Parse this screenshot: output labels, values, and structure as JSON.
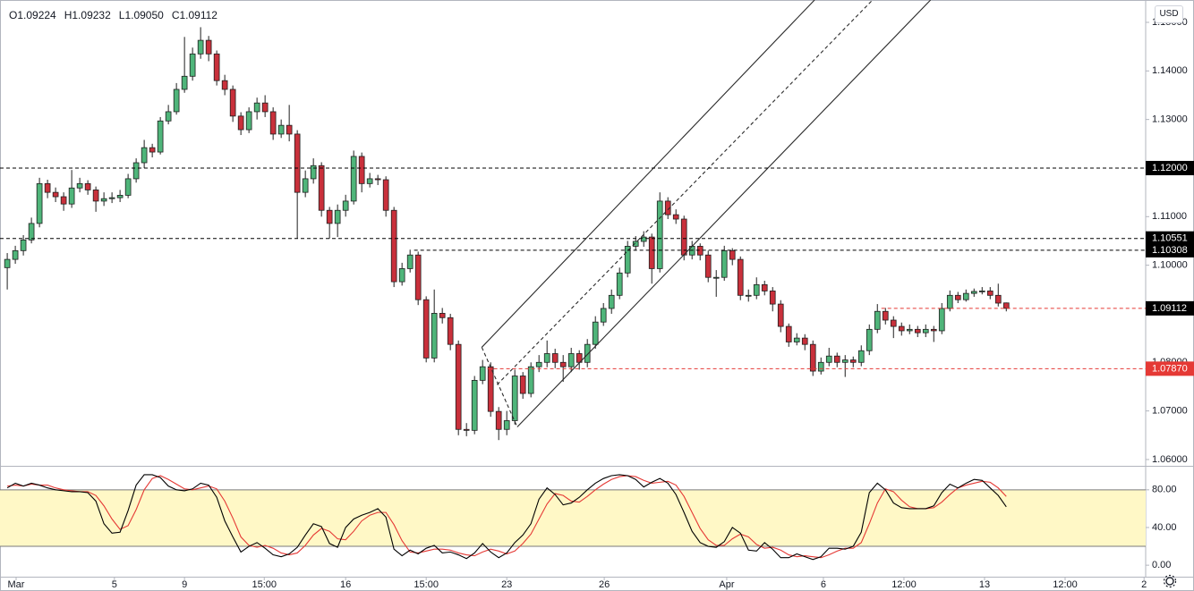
{
  "chart_data": [
    {
      "type": "candlestick",
      "header": [
        "O1.09224",
        "H1.09232",
        "L1.09050",
        "C1.09112"
      ],
      "currency": "USD",
      "open": [
        1.0995,
        1.1012,
        1.103,
        1.1052,
        1.1086,
        1.1168,
        1.115,
        1.1141,
        1.1126,
        1.1159,
        1.1168,
        1.1155,
        1.1132,
        1.1137,
        1.1139,
        1.1144,
        1.1178,
        1.1211,
        1.1242,
        1.1233,
        1.1297,
        1.1316,
        1.1362,
        1.1389,
        1.1435,
        1.1463,
        1.1435,
        1.138,
        1.1362,
        1.1307,
        1.1279,
        1.1316,
        1.1334,
        1.1316,
        1.127,
        1.1288,
        1.127,
        1.115,
        1.1178,
        1.1205,
        1.1113,
        1.1086,
        1.1113,
        1.1132,
        1.1224,
        1.1168,
        1.1178,
        1.1176,
        1.1113,
        1.0966,
        1.0993,
        1.1021,
        1.0929,
        1.0809,
        1.0901,
        1.0892,
        1.0837,
        1.0662,
        1.066,
        1.0763,
        1.0791,
        1.0699,
        1.0662,
        1.068,
        1.0772,
        1.0736,
        1.0791,
        1.08,
        1.0818,
        1.08,
        1.0791,
        1.0818,
        1.08,
        1.0837,
        1.0883,
        1.0911,
        1.0938,
        1.0984,
        1.1039,
        1.1049,
        1.1058,
        1.0993,
        1.1132,
        1.1104,
        1.1095,
        1.1021,
        1.1039,
        1.1021,
        1.0975,
        1.0975,
        1.103,
        1.1012,
        1.0938,
        1.0938,
        1.096,
        1.0947,
        1.092,
        1.0874,
        1.0842,
        1.085,
        1.0837,
        1.0782,
        1.08,
        1.0813,
        1.08,
        1.0805,
        1.08,
        1.0824,
        1.0868,
        1.0905,
        1.0887,
        1.0874,
        1.0865,
        1.0868,
        1.0861,
        1.0868,
        1.0865,
        1.0911,
        1.0938,
        1.0929,
        1.0942,
        1.0946,
        1.0947,
        1.0938,
        1.09224
      ],
      "high": [
        1.1025,
        1.104,
        1.1062,
        1.1098,
        1.118,
        1.1176,
        1.116,
        1.115,
        1.1196,
        1.118,
        1.1175,
        1.1162,
        1.115,
        1.115,
        1.1155,
        1.1188,
        1.122,
        1.1258,
        1.125,
        1.1305,
        1.133,
        1.1375,
        1.147,
        1.1448,
        1.149,
        1.1472,
        1.1442,
        1.1392,
        1.137,
        1.1315,
        1.1325,
        1.1345,
        1.135,
        1.1325,
        1.13,
        1.133,
        1.1278,
        1.1195,
        1.122,
        1.1212,
        1.112,
        1.1125,
        1.1145,
        1.1236,
        1.1232,
        1.119,
        1.1186,
        1.1183,
        1.112,
        1.1005,
        1.1032,
        1.1028,
        1.0936,
        1.095,
        1.0912,
        1.09,
        1.0845,
        1.0675,
        1.0772,
        1.0805,
        1.08,
        1.0708,
        1.07,
        1.0785,
        1.078,
        1.08,
        1.0815,
        1.0845,
        1.0828,
        1.0815,
        1.083,
        1.0825,
        1.0848,
        1.0895,
        1.0922,
        1.095,
        1.0995,
        1.105,
        1.106,
        1.107,
        1.1065,
        1.115,
        1.114,
        1.1115,
        1.1102,
        1.105,
        1.1045,
        1.103,
        1.099,
        1.104,
        1.1035,
        1.1018,
        1.095,
        1.0975,
        1.0968,
        1.0955,
        1.0928,
        1.088,
        1.086,
        1.0858,
        1.0845,
        1.081,
        1.083,
        1.082,
        1.0815,
        1.0812,
        1.0835,
        1.0878,
        1.092,
        1.0912,
        1.0895,
        1.0882,
        1.0878,
        1.0875,
        1.0878,
        1.0875,
        1.0922,
        1.0948,
        1.0945,
        1.095,
        1.0952,
        1.0955,
        1.0955,
        1.0962,
        1.09232
      ],
      "low": [
        1.095,
        1.1003,
        1.102,
        1.1045,
        1.1078,
        1.1138,
        1.113,
        1.1112,
        1.1118,
        1.115,
        1.1145,
        1.111,
        1.1122,
        1.1128,
        1.113,
        1.1138,
        1.117,
        1.12,
        1.1222,
        1.1228,
        1.129,
        1.131,
        1.1355,
        1.138,
        1.1425,
        1.142,
        1.137,
        1.135,
        1.1295,
        1.1268,
        1.1272,
        1.13,
        1.1305,
        1.1258,
        1.1262,
        1.1255,
        1.1055,
        1.114,
        1.1168,
        1.11,
        1.1055,
        1.1058,
        1.11,
        1.1125,
        1.115,
        1.116,
        1.1165,
        1.11,
        1.0955,
        1.0958,
        1.0985,
        1.0918,
        1.08,
        1.08,
        1.088,
        1.0825,
        1.065,
        1.0648,
        1.0652,
        1.0755,
        1.0688,
        1.064,
        1.065,
        1.0672,
        1.0725,
        1.0728,
        1.078,
        1.079,
        1.0788,
        1.076,
        1.078,
        1.0785,
        1.079,
        1.0828,
        1.0875,
        1.09,
        1.093,
        1.0975,
        1.103,
        1.1038,
        1.0962,
        1.0985,
        1.1095,
        1.1085,
        1.101,
        1.1012,
        1.101,
        1.0965,
        1.0935,
        1.0968,
        1.1,
        1.0928,
        1.0925,
        1.093,
        1.0938,
        1.0905,
        1.0862,
        1.0832,
        1.0835,
        1.0825,
        1.0772,
        1.0775,
        1.0792,
        1.079,
        1.077,
        1.079,
        1.0792,
        1.0815,
        1.086,
        1.0878,
        1.085,
        1.0855,
        1.0858,
        1.0852,
        1.0852,
        1.0842,
        1.0858,
        1.0905,
        1.0922,
        1.0925,
        1.0935,
        1.094,
        1.093,
        1.0915,
        1.0905
      ],
      "close": [
        1.1012,
        1.103,
        1.1052,
        1.1086,
        1.1168,
        1.115,
        1.1141,
        1.1126,
        1.1159,
        1.1168,
        1.1155,
        1.1132,
        1.1137,
        1.1139,
        1.1144,
        1.1178,
        1.1211,
        1.1242,
        1.1233,
        1.1297,
        1.1316,
        1.1362,
        1.1389,
        1.1435,
        1.1463,
        1.1435,
        1.138,
        1.1362,
        1.1307,
        1.1279,
        1.1316,
        1.1334,
        1.1316,
        1.127,
        1.1288,
        1.127,
        1.115,
        1.1178,
        1.1205,
        1.1113,
        1.1086,
        1.1113,
        1.1132,
        1.1224,
        1.1168,
        1.1178,
        1.1176,
        1.1113,
        1.0966,
        1.0993,
        1.1021,
        1.0929,
        1.0809,
        1.0901,
        1.0892,
        1.0837,
        1.0662,
        1.066,
        1.0763,
        1.0791,
        1.0699,
        1.0662,
        1.068,
        1.0772,
        1.0736,
        1.0791,
        1.08,
        1.0818,
        1.08,
        1.0791,
        1.0818,
        1.08,
        1.0837,
        1.0883,
        1.0911,
        1.0938,
        1.0984,
        1.1039,
        1.1049,
        1.1058,
        1.0993,
        1.1132,
        1.1104,
        1.1095,
        1.1021,
        1.1039,
        1.1021,
        1.0975,
        1.0975,
        1.103,
        1.1012,
        1.0938,
        1.0938,
        1.096,
        1.0947,
        1.092,
        1.0874,
        1.0842,
        1.085,
        1.0837,
        1.0782,
        1.08,
        1.0813,
        1.08,
        1.0805,
        1.08,
        1.0824,
        1.0868,
        1.0905,
        1.0887,
        1.0874,
        1.0865,
        1.0868,
        1.0861,
        1.0868,
        1.0865,
        1.0911,
        1.0938,
        1.0929,
        1.0942,
        1.0946,
        1.0947,
        1.0938,
        1.0922,
        1.09112
      ],
      "up_color": "#4fb57a",
      "down_color": "#c9303b",
      "wick_color": "#1e1e1e",
      "xlim": [
        -0.9,
        141.3
      ],
      "ylim": [
        1.0587,
        1.1546
      ],
      "yticks": [
        {
          "value": 1.06,
          "label": "1.06000"
        },
        {
          "value": 1.07,
          "label": "1.07000"
        },
        {
          "value": 1.08,
          "label": "1.08000"
        },
        {
          "value": 1.1,
          "label": "1.10000"
        },
        {
          "value": 1.11,
          "label": "1.11000"
        },
        {
          "value": 1.13,
          "label": "1.13000"
        },
        {
          "value": 1.14,
          "label": "1.14000"
        },
        {
          "value": 1.15,
          "label": "1.15000"
        }
      ],
      "levels": [
        {
          "value": 1.12,
          "label": "1.12000",
          "color": "#000000",
          "label_color": "#000000"
        },
        {
          "value": 1.10551,
          "label": "1.10551",
          "color": "#000000",
          "label_color": "#000000"
        },
        {
          "value": 1.10308,
          "label": "1.10308",
          "color": "#000000",
          "label_color": "#000000",
          "from": 50.5
        },
        {
          "value": 1.0787,
          "label": "1.07870",
          "color": "#e53935",
          "label_color": "#e53935",
          "from": 59.6
        },
        {
          "value": 1.09112,
          "label": "1.09112",
          "color": "#e53935",
          "label_color": "#000000",
          "from": 108.5
        }
      ],
      "channel": [
        {
          "x": [
            58.9,
            100.2
          ],
          "y": [
            1.0831,
            1.1546
          ],
          "dashed": false
        },
        {
          "x": [
            63.3,
            114.6
          ],
          "y": [
            1.0667,
            1.1546
          ],
          "dashed": false
        },
        {
          "x": [
            60.8,
            107.4
          ],
          "y": [
            1.0754,
            1.1546
          ],
          "dashed": true
        },
        {
          "x": [
            58.9,
            63.3
          ],
          "y": [
            1.0831,
            1.0667
          ],
          "dashed": true
        }
      ]
    },
    {
      "type": "line",
      "xlim": [
        -0.9,
        141.3
      ],
      "ylim": [
        -12.2,
        104.5
      ],
      "yticks": [
        {
          "value": 0,
          "label": "0.00"
        },
        {
          "value": 40,
          "label": "40.00"
        },
        {
          "value": 80,
          "label": "80.00"
        }
      ],
      "band": [
        20,
        80
      ],
      "band_color": "#fff8c6",
      "xticks": [
        {
          "value": 1.1,
          "label": "Mar"
        },
        {
          "value": 13.3,
          "label": "5"
        },
        {
          "value": 22.0,
          "label": "9"
        },
        {
          "value": 31.9,
          "label": "15:00"
        },
        {
          "value": 42.0,
          "label": "16"
        },
        {
          "value": 52.0,
          "label": "15:00"
        },
        {
          "value": 62.0,
          "label": "23"
        },
        {
          "value": 74.1,
          "label": "26"
        },
        {
          "value": 89.3,
          "label": "Apr"
        },
        {
          "value": 101.3,
          "label": "6"
        },
        {
          "value": 111.3,
          "label": "12:00"
        },
        {
          "value": 121.3,
          "label": "13"
        },
        {
          "value": 131.3,
          "label": "12:00"
        },
        {
          "value": 141.1,
          "label": "2"
        }
      ],
      "series": [
        {
          "color": "#000000",
          "values": [
            82,
            87,
            84,
            87,
            85,
            82,
            80,
            79,
            78,
            78,
            77,
            68,
            44,
            34,
            35,
            58,
            85,
            96,
            96,
            93,
            84,
            80,
            79,
            81,
            87,
            85,
            72,
            47,
            30,
            14,
            20,
            24,
            18,
            11,
            9,
            12,
            19,
            32,
            44,
            41,
            23,
            19,
            40,
            49,
            53,
            56,
            60,
            51,
            17,
            10,
            16,
            12,
            18,
            21,
            13,
            14,
            11,
            7,
            13,
            23,
            14,
            8,
            13,
            24,
            32,
            44,
            70,
            82,
            75,
            64,
            66,
            72,
            80,
            87,
            92,
            95,
            96,
            95,
            91,
            83,
            88,
            92,
            87,
            75,
            56,
            36,
            24,
            20,
            19,
            25,
            40,
            34,
            16,
            15,
            24,
            17,
            8,
            8,
            12,
            9,
            6,
            9,
            18,
            18,
            17,
            20,
            35,
            77,
            87,
            80,
            66,
            61,
            60,
            60,
            60,
            63,
            77,
            86,
            82,
            87,
            91,
            90,
            82,
            74,
            62
          ]
        },
        {
          "color": "#e53935",
          "values": [
            84,
            85,
            84,
            86,
            85,
            85,
            82,
            80,
            79,
            78,
            78,
            74,
            63,
            49,
            38,
            42,
            59,
            80,
            92,
            95,
            91,
            86,
            81,
            80,
            82,
            84,
            81,
            68,
            50,
            30,
            21,
            19,
            21,
            18,
            13,
            11,
            13,
            21,
            32,
            39,
            36,
            28,
            27,
            36,
            47,
            53,
            56,
            56,
            43,
            26,
            14,
            13,
            15,
            17,
            17,
            16,
            13,
            11,
            10,
            14,
            17,
            15,
            12,
            15,
            23,
            33,
            49,
            65,
            76,
            74,
            68,
            67,
            73,
            80,
            86,
            91,
            94,
            95,
            94,
            90,
            87,
            88,
            89,
            85,
            73,
            56,
            39,
            27,
            21,
            21,
            28,
            33,
            30,
            22,
            18,
            19,
            16,
            11,
            9,
            10,
            9,
            8,
            11,
            15,
            18,
            18,
            24,
            44,
            66,
            81,
            78,
            69,
            62,
            60,
            60,
            61,
            67,
            75,
            82,
            85,
            87,
            89,
            88,
            82,
            73
          ]
        }
      ]
    }
  ]
}
